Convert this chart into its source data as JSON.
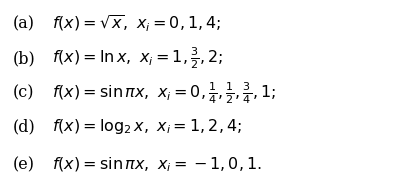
{
  "lines": [
    {
      "label": "(a)",
      "math": "$f(x) = \\sqrt{x},\\ x_i = 0, 1, 4;$"
    },
    {
      "label": "(b)",
      "math": "$f(x) = \\ln x,\\ x_i = 1, \\frac{3}{2}, 2;$"
    },
    {
      "label": "(c)",
      "math": "$f(x) = \\sin \\pi x,\\ x_i = 0, \\frac{1}{4}, \\frac{1}{2}, \\frac{3}{4}, 1;$"
    },
    {
      "label": "(d)",
      "math": "$f(x) = \\log_2 x,\\ x_i = 1, 2, 4;$"
    },
    {
      "label": "(e)",
      "math": "$f(x) = \\sin \\pi x,\\ x_i = -1, 0, 1.$"
    }
  ],
  "background_color": "#ffffff",
  "text_color": "#000000",
  "fontsize": 11.5
}
